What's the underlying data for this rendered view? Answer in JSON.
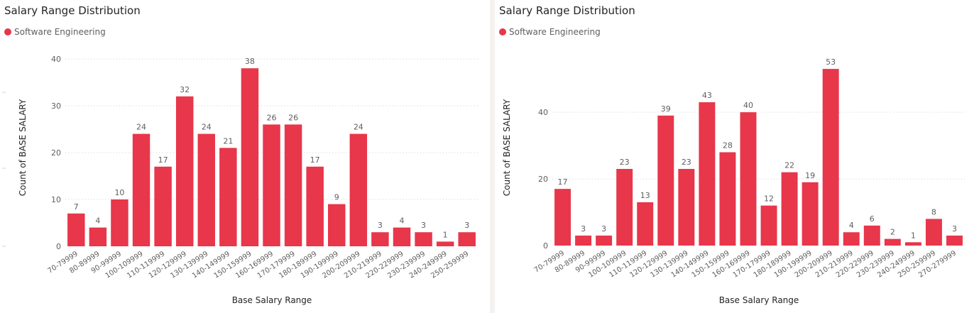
{
  "colors": {
    "bar": "#e8364a",
    "grid": "#d0d0d0"
  },
  "charts": [
    {
      "title": "Salary Range Distribution",
      "legend_label": "Software Engineering",
      "xlabel": "Base Salary Range",
      "ylabel": "Count of BASE SALARY",
      "yticks": [
        "0",
        "10",
        "20",
        "30",
        "40"
      ]
    },
    {
      "title": "Salary Range Distribution",
      "legend_label": "Software Engineering",
      "xlabel": "Base Salary Range",
      "ylabel": "Count of BASE SALARY",
      "yticks": [
        "0",
        "20",
        "40"
      ]
    }
  ],
  "chart_data": [
    {
      "type": "bar",
      "title": "Salary Range Distribution",
      "xlabel": "Base Salary Range",
      "ylabel": "Count of BASE SALARY",
      "ylim": [
        0,
        40
      ],
      "yticks": [
        0,
        10,
        20,
        30,
        40
      ],
      "grid": true,
      "legend": "top-left",
      "series": [
        {
          "name": "Software Engineering",
          "color": "#e8364a",
          "values": [
            7,
            4,
            10,
            24,
            17,
            32,
            24,
            21,
            38,
            26,
            26,
            17,
            9,
            24,
            3,
            4,
            3,
            1,
            3
          ]
        }
      ],
      "categories": [
        "70-79999",
        "80-89999",
        "90-99999",
        "100-109999",
        "110-119999",
        "120-129999",
        "130-139999",
        "140-149999",
        "150-159999",
        "160-169999",
        "170-179999",
        "180-189999",
        "190-199999",
        "200-209999",
        "210-219999",
        "220-229999",
        "230-239999",
        "240-249999",
        "250-259999"
      ]
    },
    {
      "type": "bar",
      "title": "Salary Range Distribution",
      "xlabel": "Base Salary Range",
      "ylabel": "Count of BASE SALARY",
      "ylim": [
        0,
        56
      ],
      "yticks": [
        0,
        20,
        40
      ],
      "grid": true,
      "legend": "top-left",
      "series": [
        {
          "name": "Software Engineering",
          "color": "#e8364a",
          "values": [
            17,
            3,
            3,
            23,
            13,
            39,
            23,
            43,
            28,
            40,
            12,
            22,
            19,
            53,
            4,
            6,
            2,
            1,
            8,
            3
          ]
        }
      ],
      "categories": [
        "70-79999",
        "80-89999",
        "90-99999",
        "100-109999",
        "110-119999",
        "120-129999",
        "130-139999",
        "140-149999",
        "150-159999",
        "160-169999",
        "170-179999",
        "180-189999",
        "190-199999",
        "200-209999",
        "210-219999",
        "220-229999",
        "230-239999",
        "240-249999",
        "250-259999",
        "270-279999"
      ]
    }
  ]
}
